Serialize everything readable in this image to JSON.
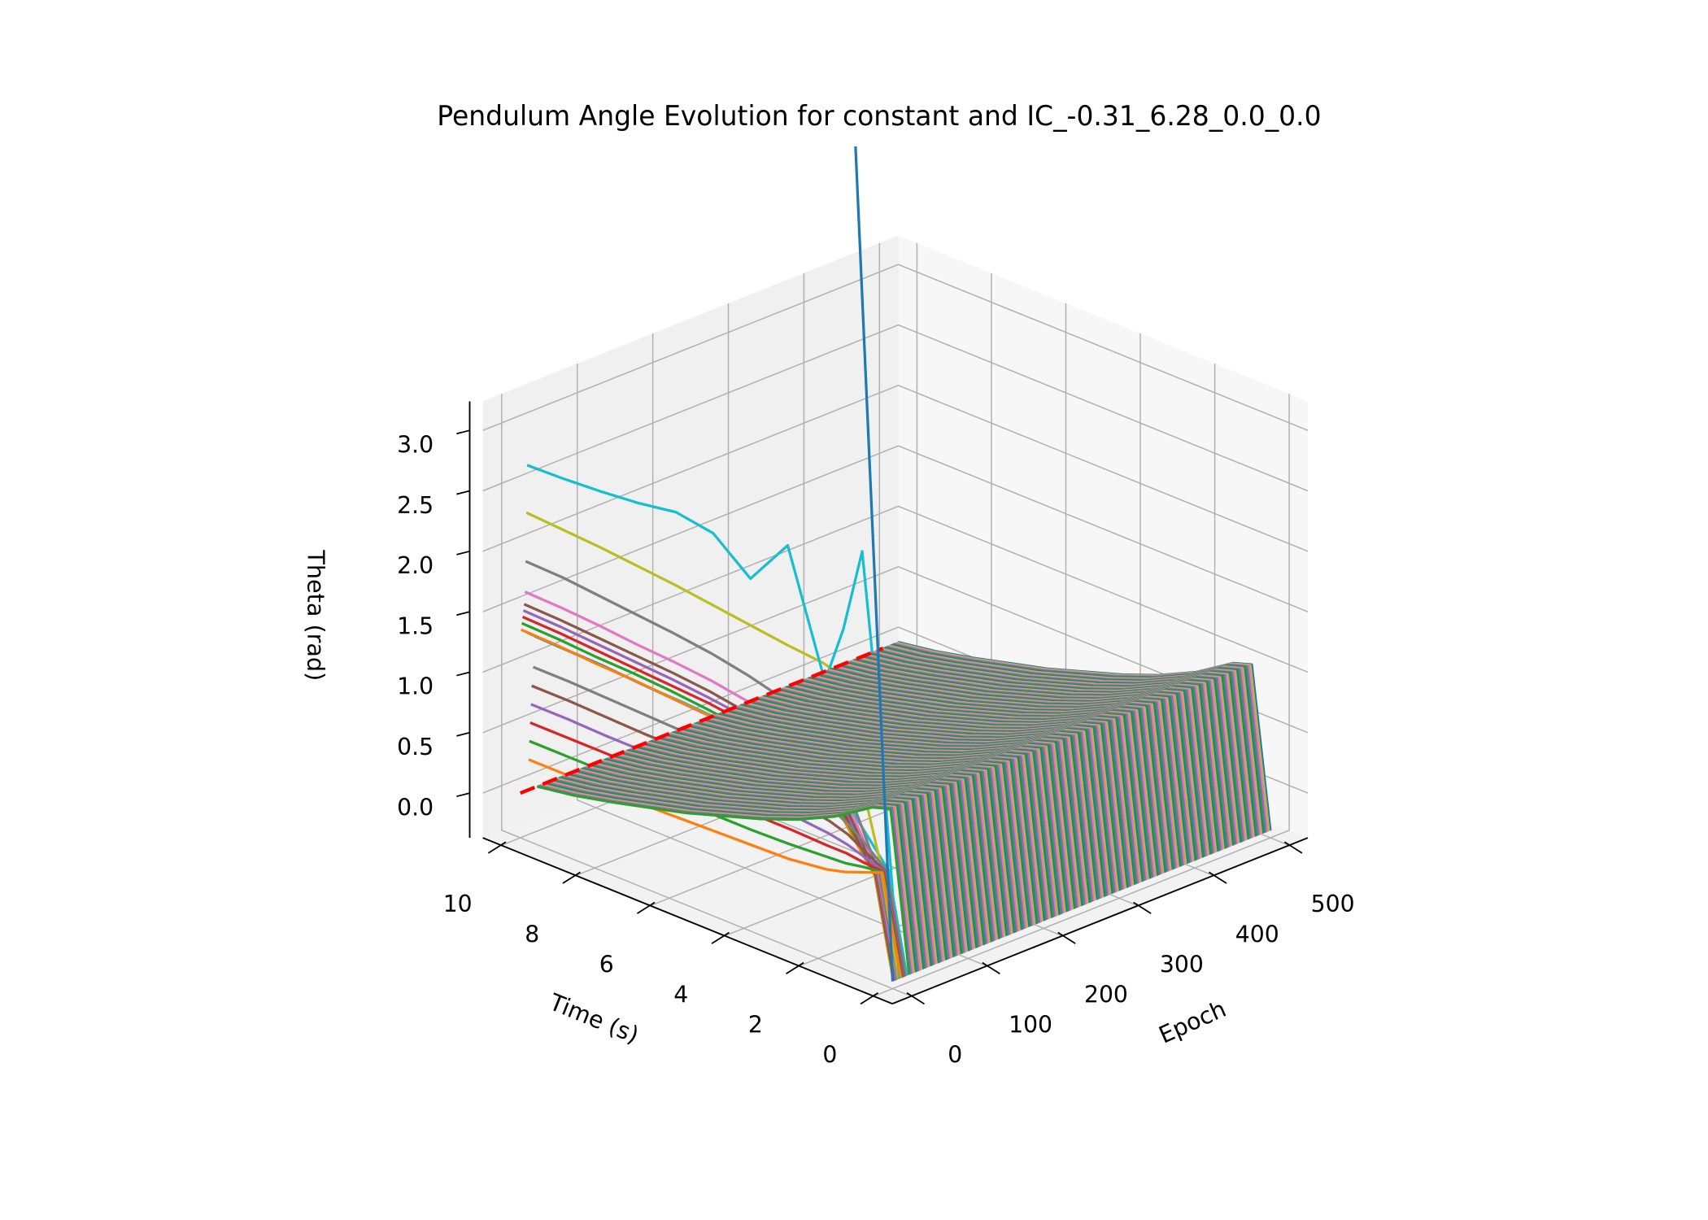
{
  "chart_data": {
    "type": "line",
    "projection": "3d",
    "title": "Pendulum Angle Evolution for constant and IC_-0.31_6.28_0.0_0.0",
    "xlabel": "Epoch",
    "ylabel": "Time (s)",
    "zlabel": "Theta (rad)",
    "xlim": [
      -25,
      525
    ],
    "ylim": [
      -0.5,
      10.5
    ],
    "zlim": [
      -0.37,
      3.24
    ],
    "x_ticks": [
      "0",
      "100",
      "200",
      "300",
      "400",
      "500"
    ],
    "y_ticks": [
      "0",
      "2",
      "4",
      "6",
      "8",
      "10"
    ],
    "z_ticks": [
      "0.0",
      "0.5",
      "1.0",
      "1.5",
      "2.0",
      "2.5",
      "3.0"
    ],
    "grid": true,
    "palette": [
      "#1f77b4",
      "#ff7f0e",
      "#2ca02c",
      "#d62728",
      "#9467bd",
      "#8c564b",
      "#e377c2",
      "#7f7f7f",
      "#bcbd22",
      "#17becf"
    ],
    "time": [
      0,
      0.5,
      1,
      1.5,
      2,
      3,
      4,
      5,
      6,
      7,
      8,
      9,
      10
    ],
    "series": [
      {
        "epoch": 19,
        "theta": [
          -0.31,
          0.5,
          0.69,
          0.88,
          0.99,
          1.1,
          1.15,
          1.18,
          1.2,
          1.21,
          1.23,
          1.24,
          1.25
        ]
      },
      {
        "epoch": 10,
        "theta": [
          -0.31,
          0.5,
          0.7,
          0.9,
          1.02,
          1.14,
          1.19,
          1.22,
          1.24,
          1.26,
          1.28,
          1.29,
          1.3
        ]
      },
      {
        "epoch": 1,
        "theta": [
          -0.31,
          0.5,
          0.71,
          0.93,
          1.05,
          1.18,
          1.23,
          1.27,
          1.29,
          1.31,
          1.32,
          1.34,
          1.35
        ]
      },
      {
        "epoch": 2,
        "theta": [
          -0.31,
          0.5,
          0.73,
          0.95,
          1.09,
          1.22,
          1.27,
          1.31,
          1.34,
          1.36,
          1.37,
          1.39,
          1.4
        ]
      },
      {
        "epoch": 3,
        "theta": [
          -0.31,
          0.5,
          0.74,
          0.98,
          1.12,
          1.26,
          1.32,
          1.36,
          1.38,
          1.4,
          1.42,
          1.44,
          1.45
        ]
      },
      {
        "epoch": 4,
        "theta": [
          -0.31,
          0.5,
          0.75,
          1.0,
          1.15,
          1.3,
          1.36,
          1.4,
          1.43,
          1.45,
          1.47,
          1.49,
          1.5
        ]
      },
      {
        "epoch": 5,
        "theta": [
          -0.31,
          0.5,
          0.76,
          1.03,
          1.18,
          1.34,
          1.4,
          1.45,
          1.48,
          1.5,
          1.52,
          1.54,
          1.55
        ]
      },
      {
        "epoch": 6,
        "theta": [
          -0.31,
          0.5,
          0.79,
          1.08,
          1.25,
          1.42,
          1.49,
          1.54,
          1.57,
          1.59,
          1.62,
          1.64,
          1.65
        ]
      },
      {
        "epoch": 7,
        "theta": [
          -0.31,
          0.5,
          0.85,
          1.2,
          1.41,
          1.62,
          1.7,
          1.76,
          1.8,
          1.83,
          1.86,
          1.89,
          1.9
        ]
      },
      {
        "epoch": 8,
        "theta": [
          -0.31,
          0.6,
          1.2,
          2.0,
          2.05,
          2.08,
          2.12,
          2.16,
          2.2,
          2.23,
          2.26,
          2.28,
          2.3
        ]
      },
      {
        "epoch": 9,
        "theta": [
          -0.31,
          1.6,
          3.1,
          2.4,
          1.9,
          2.9,
          2.5,
          2.75,
          2.8,
          2.75,
          2.72,
          2.7,
          2.69
        ]
      },
      {
        "epoch": 17,
        "theta": [
          -0.31,
          0.5,
          0.63,
          0.75,
          0.83,
          0.9,
          0.93,
          0.95,
          0.97,
          0.98,
          0.99,
          1.0,
          1.0
        ]
      },
      {
        "epoch": 15,
        "theta": [
          -0.31,
          0.5,
          0.59,
          0.68,
          0.73,
          0.78,
          0.8,
          0.82,
          0.83,
          0.83,
          0.84,
          0.85,
          0.85
        ]
      },
      {
        "epoch": 14,
        "theta": [
          -0.31,
          0.5,
          0.55,
          0.6,
          0.63,
          0.66,
          0.67,
          0.68,
          0.69,
          0.69,
          0.69,
          0.7,
          0.7
        ]
      },
      {
        "epoch": 13,
        "theta": [
          -0.31,
          0.5,
          0.51,
          0.53,
          0.53,
          0.54,
          0.54,
          0.55,
          0.55,
          0.55,
          0.55,
          0.55,
          0.55
        ]
      },
      {
        "epoch": 12,
        "theta": [
          -0.31,
          0.5,
          0.48,
          0.45,
          0.44,
          0.42,
          0.41,
          0.41,
          0.41,
          0.41,
          0.4,
          0.4,
          0.4
        ]
      },
      {
        "epoch": 11,
        "theta": [
          -0.31,
          0.5,
          0.44,
          0.38,
          0.34,
          0.3,
          0.29,
          0.28,
          0.27,
          0.26,
          0.26,
          0.25,
          0.25
        ]
      }
    ],
    "converged_group": {
      "epochs": [
        30,
        40,
        50,
        60,
        70,
        80,
        90,
        100,
        110,
        120,
        130,
        140,
        150,
        160,
        170,
        180,
        190,
        200,
        210,
        220,
        230,
        240,
        250,
        260,
        270,
        280,
        290,
        300,
        310,
        320,
        330,
        340,
        350,
        360,
        370,
        380,
        390,
        400,
        410,
        420,
        430,
        440,
        450,
        460,
        470,
        480,
        490,
        500
      ],
      "theta": [
        -0.31,
        1.0,
        0.95,
        0.85,
        0.75,
        0.6,
        0.48,
        0.38,
        0.28,
        0.2,
        0.12,
        0.05,
        0.0
      ]
    },
    "diverging_series": {
      "epoch": 0,
      "time": [
        0,
        0.25,
        0.5,
        0.75,
        1.0
      ],
      "theta": [
        -0.31,
        1.4,
        3.1,
        4.8,
        6.5
      ]
    },
    "target_line": {
      "time": 10,
      "theta": 0.0,
      "epoch_range": [
        0,
        480
      ],
      "color": "#ff0000",
      "style": "dashed"
    }
  }
}
